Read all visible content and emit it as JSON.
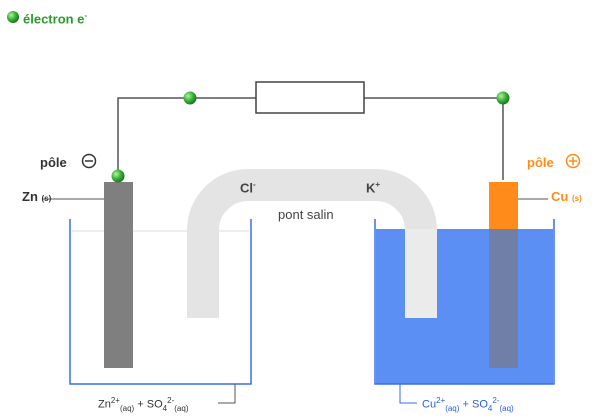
{
  "legend": {
    "label": "électron e",
    "superscript": "-",
    "color": "#2e9a2e"
  },
  "left_pole": {
    "label": "pôle",
    "sign": "−"
  },
  "right_pole": {
    "label": "pôle",
    "sign": "+"
  },
  "left_electrode": {
    "symbol": "Zn",
    "state": "(s)"
  },
  "right_electrode": {
    "symbol": "Cu",
    "state": "(s)"
  },
  "salt_bridge": {
    "label": "pont salin",
    "anion": "Cl",
    "anion_charge": "-",
    "cation": "K",
    "cation_charge": "+"
  },
  "left_solution": {
    "ion1": "Zn",
    "ion1_charge": "2+",
    "ion1_state": "(aq)",
    "plus": "+",
    "ion2": "SO",
    "ion2_index": "4",
    "ion2_charge": "2-",
    "ion2_state": "(aq)"
  },
  "right_solution": {
    "ion1": "Cu",
    "ion1_charge": "2+",
    "ion1_state": "(aq)",
    "plus": "+",
    "ion2": "SO",
    "ion2_index": "4",
    "ion2_charge": "2-",
    "ion2_state": "(aq)"
  },
  "colors": {
    "electron": "#2e9a2e",
    "zinc": "#7f7f7f",
    "copper": "#ff8c1a",
    "copper_solution": "#5b8ff3",
    "beaker_outline": "#3a6ee8",
    "salt_bridge": "#e3e3e3"
  }
}
